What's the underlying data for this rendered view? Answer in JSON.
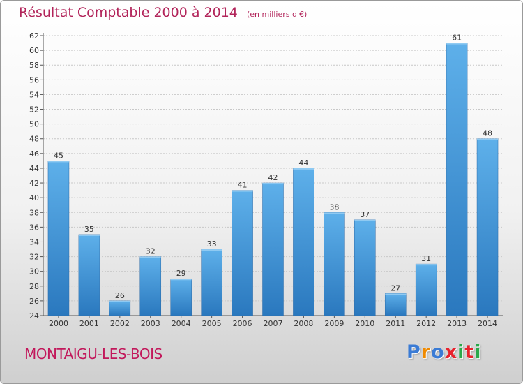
{
  "header": {
    "title": "Résultat Comptable 2000 à 2014",
    "subtitle": "(en milliers d'€)"
  },
  "footer": {
    "town": "MONTAIGU-LES-BOIS",
    "brand": "Proxiti"
  },
  "colors": {
    "bar": "#3d8fd4",
    "bar_light": "#5eb0ea",
    "bar_dark": "#2a78be",
    "title": "#b2245a",
    "town": "#c2185b",
    "brand_letters": [
      "#3a7bd5",
      "#f08a00",
      "#3a7bd5",
      "#e8222d",
      "#2aa84a",
      "#e8222d",
      "#2aa84a"
    ]
  },
  "chart_data": {
    "type": "bar",
    "title": "Résultat Comptable 2000 à 2014",
    "subtitle": "(en milliers d'€)",
    "xlabel": "",
    "ylabel": "",
    "categories": [
      "2000",
      "2001",
      "2002",
      "2003",
      "2004",
      "2005",
      "2006",
      "2007",
      "2008",
      "2009",
      "2010",
      "2011",
      "2012",
      "2013",
      "2014"
    ],
    "values": [
      45,
      35,
      26,
      32,
      29,
      33,
      41,
      42,
      44,
      38,
      37,
      27,
      31,
      61,
      48
    ],
    "ylim": [
      24,
      62
    ],
    "yticks": [
      24,
      26,
      28,
      30,
      32,
      34,
      36,
      38,
      40,
      42,
      44,
      46,
      48,
      50,
      52,
      54,
      56,
      58,
      60,
      62
    ],
    "grid": true,
    "data_labels": true
  }
}
